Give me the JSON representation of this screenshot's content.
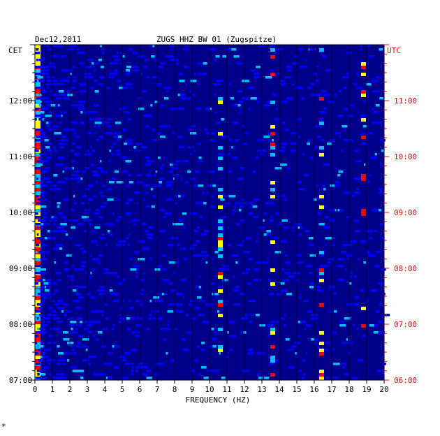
{
  "chart_data": {
    "type": "heatmap",
    "title": "ZUGS HHZ BW 01 (Zugspitze)",
    "date": "Dec12,2011",
    "xlabel": "FREQUENCY (HZ)",
    "xlim": [
      0,
      20
    ],
    "x_ticks": [
      "0",
      "1",
      "2",
      "3",
      "4",
      "5",
      "6",
      "7",
      "8",
      "9",
      "10",
      "11",
      "12",
      "13",
      "14",
      "15",
      "16",
      "17",
      "18",
      "19",
      "20"
    ],
    "left_axis_label": "CET",
    "right_axis_label": "UTC",
    "left_ticks": [
      "12:00",
      "11:00",
      "10:00",
      "09:00",
      "08:00",
      "07:00"
    ],
    "right_ticks": [
      "11:00",
      "10:00",
      "09:00",
      "08:00",
      "07:00",
      "06:00"
    ],
    "time_range_cet": [
      "07:00",
      "13:00"
    ],
    "colormap": [
      "#00008b",
      "#0000ff",
      "#00bfff",
      "#ffff00",
      "#ff0000"
    ],
    "left_label_color": "#000000",
    "right_label_color": "#ff0000",
    "hot_bands": [
      {
        "freq_hz": 10.6,
        "level": "high"
      },
      {
        "freq_hz": 13.6,
        "level": "high"
      },
      {
        "freq_hz": 16.4,
        "level": "high"
      },
      {
        "freq_hz": 18.8,
        "level": "medium"
      }
    ]
  },
  "footer_mark": "*"
}
